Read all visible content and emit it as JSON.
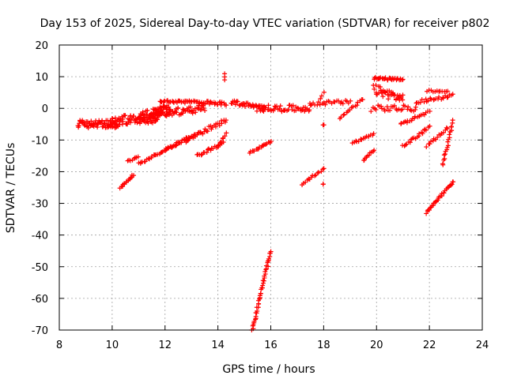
{
  "chart_data": {
    "type": "scatter",
    "title": "Day 153 of 2025, Sidereal Day-to-day VTEC variation (SDTVAR) for receiver p802",
    "xlabel": "GPS time / hours",
    "ylabel": "SDTVAR / TECUs",
    "xlim": [
      8,
      24
    ],
    "ylim": [
      -70,
      20
    ],
    "xticks": [
      "8",
      "10",
      "12",
      "14",
      "16",
      "18",
      "20",
      "22",
      "24"
    ],
    "yticks": [
      "20",
      "10",
      "0",
      "-10",
      "-20",
      "-30",
      "-40",
      "-50",
      "-60",
      "-70"
    ],
    "grid": true,
    "marker": "+",
    "color": "#ff0000",
    "series_segments": [
      {
        "name": "cluster-a",
        "start": [
          8.7,
          -5
        ],
        "end": [
          10.2,
          -5
        ],
        "jitter": 1.2,
        "count": 70
      },
      {
        "name": "cluster-b",
        "start": [
          9.9,
          -4
        ],
        "end": [
          11.8,
          -3
        ],
        "jitter": 1.5,
        "count": 80
      },
      {
        "name": "cluster-c",
        "start": [
          11.0,
          -3
        ],
        "end": [
          12.2,
          0
        ],
        "jitter": 1.5,
        "count": 60
      },
      {
        "name": "cluster-d",
        "start": [
          11.8,
          2.5
        ],
        "end": [
          14.3,
          1.5
        ],
        "jitter": 0.5,
        "count": 60
      },
      {
        "name": "cluster-e",
        "start": [
          11.5,
          -2
        ],
        "end": [
          13.5,
          0
        ],
        "jitter": 1.2,
        "count": 60
      },
      {
        "name": "arc-1",
        "start": [
          10.3,
          -25
        ],
        "end": [
          10.8,
          -21
        ],
        "jitter": 0.2,
        "count": 15
      },
      {
        "name": "arc-2",
        "start": [
          10.6,
          -16.5
        ],
        "end": [
          11.0,
          -15.5
        ],
        "jitter": 0.3,
        "count": 8
      },
      {
        "name": "arc-3",
        "start": [
          11.0,
          -17.5
        ],
        "end": [
          12.5,
          -11
        ],
        "jitter": 0.4,
        "count": 30
      },
      {
        "name": "arc-4",
        "start": [
          12.0,
          -13
        ],
        "end": [
          13.2,
          -8
        ],
        "jitter": 0.5,
        "count": 25
      },
      {
        "name": "arc-5",
        "start": [
          12.8,
          -10
        ],
        "end": [
          14.3,
          -4
        ],
        "jitter": 0.8,
        "count": 35
      },
      {
        "name": "arc-6",
        "start": [
          13.2,
          -15
        ],
        "end": [
          14.2,
          -11
        ],
        "jitter": 0.4,
        "count": 20
      },
      {
        "name": "arc-7",
        "start": [
          14.0,
          -12
        ],
        "end": [
          14.3,
          -8
        ],
        "jitter": 0.3,
        "count": 8
      },
      {
        "name": "spike-a",
        "start": [
          14.25,
          9
        ],
        "end": [
          14.25,
          11
        ],
        "jitter": 0.1,
        "count": 3
      },
      {
        "name": "blob-1",
        "start": [
          14.5,
          2
        ],
        "end": [
          15.8,
          0
        ],
        "jitter": 0.7,
        "count": 35
      },
      {
        "name": "blob-2",
        "start": [
          15.5,
          0
        ],
        "end": [
          17.5,
          0
        ],
        "jitter": 1.0,
        "count": 50
      },
      {
        "name": "arc-8",
        "start": [
          15.2,
          -14
        ],
        "end": [
          16.0,
          -10.5
        ],
        "jitter": 0.3,
        "count": 18
      },
      {
        "name": "deep-arc",
        "start": [
          15.3,
          -70
        ],
        "end": [
          16.0,
          -45
        ],
        "jitter": 0.4,
        "count": 45
      },
      {
        "name": "spike-b",
        "start": [
          17.9,
          3
        ],
        "end": [
          18.0,
          5
        ],
        "jitter": 0.1,
        "count": 3
      },
      {
        "name": "spike-c",
        "start": [
          18.0,
          -5
        ],
        "end": [
          18.0,
          -5
        ],
        "jitter": 0.3,
        "count": 2
      },
      {
        "name": "arc-9",
        "start": [
          17.2,
          -24
        ],
        "end": [
          18.0,
          -19
        ],
        "jitter": 0.3,
        "count": 15
      },
      {
        "name": "spike-d",
        "start": [
          18.0,
          -24
        ],
        "end": [
          18.0,
          -24
        ],
        "jitter": 0.2,
        "count": 2
      },
      {
        "name": "blob-3",
        "start": [
          17.5,
          1.5
        ],
        "end": [
          19.0,
          2
        ],
        "jitter": 0.6,
        "count": 25
      },
      {
        "name": "arc-10",
        "start": [
          18.6,
          -3
        ],
        "end": [
          19.5,
          3
        ],
        "jitter": 0.5,
        "count": 15
      },
      {
        "name": "arc-11",
        "start": [
          19.1,
          -11
        ],
        "end": [
          19.9,
          -8
        ],
        "jitter": 0.3,
        "count": 15
      },
      {
        "name": "arc-12",
        "start": [
          19.5,
          -16.5
        ],
        "end": [
          19.9,
          -13
        ],
        "jitter": 0.3,
        "count": 10
      },
      {
        "name": "high-band",
        "start": [
          19.9,
          9.5
        ],
        "end": [
          21.0,
          9
        ],
        "jitter": 0.4,
        "count": 30
      },
      {
        "name": "wave-band",
        "start": [
          19.9,
          6
        ],
        "end": [
          21.0,
          3
        ],
        "jitter": 1.5,
        "count": 40
      },
      {
        "name": "mid-band",
        "start": [
          19.8,
          0
        ],
        "end": [
          21.5,
          0
        ],
        "jitter": 1.0,
        "count": 30
      },
      {
        "name": "arc-13",
        "start": [
          20.9,
          -5
        ],
        "end": [
          22.0,
          -1
        ],
        "jitter": 0.4,
        "count": 20
      },
      {
        "name": "arc-14",
        "start": [
          21.0,
          -12
        ],
        "end": [
          22.0,
          -6
        ],
        "jitter": 0.4,
        "count": 20
      },
      {
        "name": "band-r1",
        "start": [
          21.5,
          2
        ],
        "end": [
          22.9,
          4
        ],
        "jitter": 0.5,
        "count": 25
      },
      {
        "name": "band-r2",
        "start": [
          21.9,
          5.5
        ],
        "end": [
          22.7,
          5.5
        ],
        "jitter": 0.3,
        "count": 12
      },
      {
        "name": "arc-15",
        "start": [
          21.9,
          -12
        ],
        "end": [
          22.7,
          -6
        ],
        "jitter": 0.4,
        "count": 15
      },
      {
        "name": "arc-16",
        "start": [
          22.5,
          -18
        ],
        "end": [
          22.9,
          -4
        ],
        "jitter": 0.4,
        "count": 20
      },
      {
        "name": "arc-17",
        "start": [
          21.9,
          -33
        ],
        "end": [
          22.9,
          -23
        ],
        "jitter": 0.3,
        "count": 30
      }
    ]
  }
}
